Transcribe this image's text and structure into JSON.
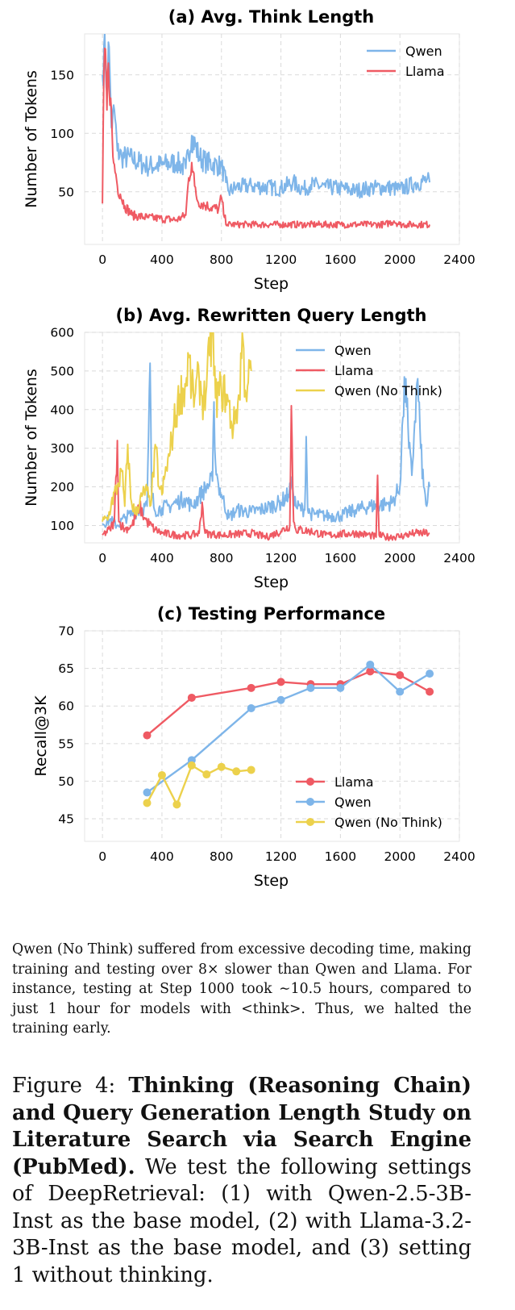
{
  "colors": {
    "qwen": "#7eb5e9",
    "llama": "#ef5a63",
    "qwen_no_think": "#ecd14c"
  },
  "chart_data": [
    {
      "type": "line",
      "title": "(a) Avg. Think Length",
      "xlabel": "Step",
      "ylabel": "Number of Tokens",
      "xlim": [
        -120,
        2400
      ],
      "ylim": [
        5,
        185
      ],
      "xticks": [
        0,
        400,
        800,
        1200,
        1600,
        2000,
        2400
      ],
      "yticks": [
        50,
        100,
        150
      ],
      "legend_position": "top-right",
      "series": [
        {
          "name": "Qwen",
          "color_key": "qwen",
          "anchors": [
            [
              0,
              150
            ],
            [
              10,
              175
            ],
            [
              20,
              160
            ],
            [
              30,
              135
            ],
            [
              40,
              178
            ],
            [
              50,
              150
            ],
            [
              60,
              105
            ],
            [
              80,
              120
            ],
            [
              100,
              85
            ],
            [
              130,
              80
            ],
            [
              200,
              78
            ],
            [
              300,
              72
            ],
            [
              400,
              73
            ],
            [
              500,
              75
            ],
            [
              560,
              70
            ],
            [
              600,
              98
            ],
            [
              650,
              80
            ],
            [
              700,
              75
            ],
            [
              800,
              72
            ],
            [
              830,
              58
            ],
            [
              850,
              50
            ],
            [
              900,
              54
            ],
            [
              1000,
              55
            ],
            [
              1200,
              53
            ],
            [
              1280,
              58
            ],
            [
              1350,
              52
            ],
            [
              1400,
              56
            ],
            [
              1500,
              54
            ],
            [
              1600,
              53
            ],
            [
              1700,
              51
            ],
            [
              1800,
              53
            ],
            [
              1900,
              54
            ],
            [
              2000,
              52
            ],
            [
              2100,
              57
            ],
            [
              2180,
              60
            ],
            [
              2200,
              58
            ]
          ]
        },
        {
          "name": "Llama",
          "color_key": "llama",
          "anchors": [
            [
              0,
              40
            ],
            [
              10,
              155
            ],
            [
              20,
              172
            ],
            [
              30,
              120
            ],
            [
              40,
              160
            ],
            [
              55,
              130
            ],
            [
              70,
              80
            ],
            [
              90,
              65
            ],
            [
              100,
              55
            ],
            [
              120,
              48
            ],
            [
              150,
              38
            ],
            [
              200,
              30
            ],
            [
              300,
              28
            ],
            [
              400,
              27
            ],
            [
              500,
              26
            ],
            [
              560,
              30
            ],
            [
              580,
              62
            ],
            [
              600,
              75
            ],
            [
              620,
              55
            ],
            [
              640,
              42
            ],
            [
              700,
              38
            ],
            [
              780,
              35
            ],
            [
              800,
              45
            ],
            [
              820,
              28
            ],
            [
              840,
              22
            ],
            [
              900,
              22
            ],
            [
              1200,
              22
            ],
            [
              1600,
              22
            ],
            [
              1900,
              22
            ],
            [
              1960,
              25
            ],
            [
              2000,
              22
            ],
            [
              2200,
              22
            ]
          ]
        }
      ]
    },
    {
      "type": "line",
      "title": "(b) Avg. Rewritten Query Length",
      "xlabel": "Step",
      "ylabel": "Number of Tokens",
      "xlim": [
        -120,
        2400
      ],
      "ylim": [
        55,
        600
      ],
      "xticks": [
        0,
        400,
        800,
        1200,
        1600,
        2000,
        2400
      ],
      "yticks": [
        100,
        200,
        300,
        400,
        500,
        600
      ],
      "legend_position": "top-right",
      "series": [
        {
          "name": "Qwen",
          "color_key": "qwen",
          "anchors": [
            [
              0,
              105
            ],
            [
              50,
              115
            ],
            [
              100,
              100
            ],
            [
              150,
              120
            ],
            [
              200,
              130
            ],
            [
              250,
              140
            ],
            [
              300,
              150
            ],
            [
              310,
              330
            ],
            [
              320,
              520
            ],
            [
              330,
              190
            ],
            [
              350,
              140
            ],
            [
              400,
              145
            ],
            [
              450,
              150
            ],
            [
              500,
              160
            ],
            [
              550,
              170
            ],
            [
              600,
              150
            ],
            [
              650,
              175
            ],
            [
              700,
              200
            ],
            [
              740,
              215
            ],
            [
              750,
              420
            ],
            [
              760,
              260
            ],
            [
              780,
              205
            ],
            [
              800,
              180
            ],
            [
              850,
              120
            ],
            [
              900,
              140
            ],
            [
              1000,
              135
            ],
            [
              1100,
              145
            ],
            [
              1200,
              160
            ],
            [
              1250,
              180
            ],
            [
              1270,
              205
            ],
            [
              1280,
              195
            ],
            [
              1300,
              150
            ],
            [
              1360,
              140
            ],
            [
              1370,
              330
            ],
            [
              1380,
              140
            ],
            [
              1400,
              130
            ],
            [
              1500,
              125
            ],
            [
              1600,
              125
            ],
            [
              1700,
              140
            ],
            [
              1800,
              150
            ],
            [
              1900,
              155
            ],
            [
              1950,
              160
            ],
            [
              2000,
              200
            ],
            [
              2020,
              380
            ],
            [
              2040,
              480
            ],
            [
              2060,
              300
            ],
            [
              2080,
              230
            ],
            [
              2100,
              370
            ],
            [
              2120,
              480
            ],
            [
              2140,
              300
            ],
            [
              2160,
              200
            ],
            [
              2180,
              150
            ],
            [
              2200,
              200
            ]
          ]
        },
        {
          "name": "Llama",
          "color_key": "llama",
          "anchors": [
            [
              0,
              75
            ],
            [
              50,
              90
            ],
            [
              80,
              110
            ],
            [
              100,
              320
            ],
            [
              110,
              110
            ],
            [
              150,
              90
            ],
            [
              200,
              100
            ],
            [
              250,
              150
            ],
            [
              280,
              120
            ],
            [
              300,
              110
            ],
            [
              350,
              90
            ],
            [
              400,
              80
            ],
            [
              500,
              75
            ],
            [
              600,
              75
            ],
            [
              650,
              80
            ],
            [
              670,
              160
            ],
            [
              690,
              80
            ],
            [
              800,
              75
            ],
            [
              1000,
              80
            ],
            [
              1100,
              70
            ],
            [
              1200,
              85
            ],
            [
              1260,
              100
            ],
            [
              1270,
              410
            ],
            [
              1285,
              110
            ],
            [
              1300,
              90
            ],
            [
              1400,
              85
            ],
            [
              1500,
              75
            ],
            [
              1700,
              80
            ],
            [
              1800,
              75
            ],
            [
              1840,
              70
            ],
            [
              1850,
              230
            ],
            [
              1860,
              75
            ],
            [
              1900,
              70
            ],
            [
              2000,
              72
            ],
            [
              2100,
              80
            ],
            [
              2200,
              80
            ]
          ]
        },
        {
          "name": "Qwen (No Think)",
          "color_key": "qwen_no_think",
          "anchors": [
            [
              0,
              110
            ],
            [
              40,
              120
            ],
            [
              60,
              160
            ],
            [
              100,
              200
            ],
            [
              130,
              240
            ],
            [
              150,
              150
            ],
            [
              170,
              310
            ],
            [
              190,
              170
            ],
            [
              220,
              130
            ],
            [
              270,
              180
            ],
            [
              300,
              190
            ],
            [
              320,
              150
            ],
            [
              360,
              300
            ],
            [
              380,
              200
            ],
            [
              400,
              180
            ],
            [
              420,
              230
            ],
            [
              450,
              280
            ],
            [
              480,
              360
            ],
            [
              520,
              440
            ],
            [
              560,
              460
            ],
            [
              580,
              540
            ],
            [
              600,
              450
            ],
            [
              620,
              430
            ],
            [
              650,
              480
            ],
            [
              680,
              420
            ],
            [
              700,
              460
            ],
            [
              720,
              540
            ],
            [
              740,
              600
            ],
            [
              760,
              430
            ],
            [
              800,
              450
            ],
            [
              830,
              440
            ],
            [
              880,
              350
            ],
            [
              900,
              400
            ],
            [
              920,
              430
            ],
            [
              940,
              600
            ],
            [
              960,
              450
            ],
            [
              980,
              470
            ],
            [
              1000,
              500
            ]
          ]
        }
      ]
    },
    {
      "type": "line",
      "title": "(c) Testing Performance",
      "xlabel": "Step",
      "ylabel": "Recall@3K",
      "xlim": [
        -120,
        2400
      ],
      "ylim": [
        42,
        70
      ],
      "xticks": [
        0,
        400,
        800,
        1200,
        1600,
        2000,
        2400
      ],
      "yticks": [
        45,
        50,
        55,
        60,
        65,
        70
      ],
      "legend_position": "bottom-right",
      "markers": true,
      "series": [
        {
          "name": "Llama",
          "color_key": "llama",
          "x": [
            300,
            600,
            1000,
            1200,
            1400,
            1600,
            1800,
            2000,
            2200
          ],
          "y": [
            56.1,
            61.1,
            62.4,
            63.2,
            62.9,
            62.9,
            64.6,
            64.1,
            61.9
          ]
        },
        {
          "name": "Qwen",
          "color_key": "qwen",
          "x": [
            300,
            600,
            1000,
            1200,
            1400,
            1600,
            1800,
            2000,
            2200
          ],
          "y": [
            48.5,
            52.8,
            59.7,
            60.8,
            62.4,
            62.4,
            65.5,
            61.9,
            64.3
          ]
        },
        {
          "name": "Qwen (No Think)",
          "color_key": "qwen_no_think",
          "x": [
            300,
            400,
            500,
            600,
            700,
            800,
            900,
            1000
          ],
          "y": [
            47.1,
            50.8,
            46.9,
            52.1,
            50.9,
            51.9,
            51.3,
            51.5
          ]
        }
      ]
    }
  ],
  "note": "Qwen (No Think) suffered from excessive decoding time, making training and testing over 8× slower than Qwen and Llama. For instance, testing at Step 1000 took ∼10.5 hours, compared to just 1 hour for models with <think>. Thus, we halted the training early.",
  "caption": {
    "prefix": "Figure 4:  ",
    "bold": "Thinking (Reasoning Chain) and Query Generation Length Study on Literature Search via Search Engine (PubMed).",
    "rest": " We test the following settings of DeepRetrieval: (1) with Qwen-2.5-3B-Inst as the base model, (2) with Llama-3.2-3B-Inst as the base model, and (3) setting 1 without thinking."
  }
}
